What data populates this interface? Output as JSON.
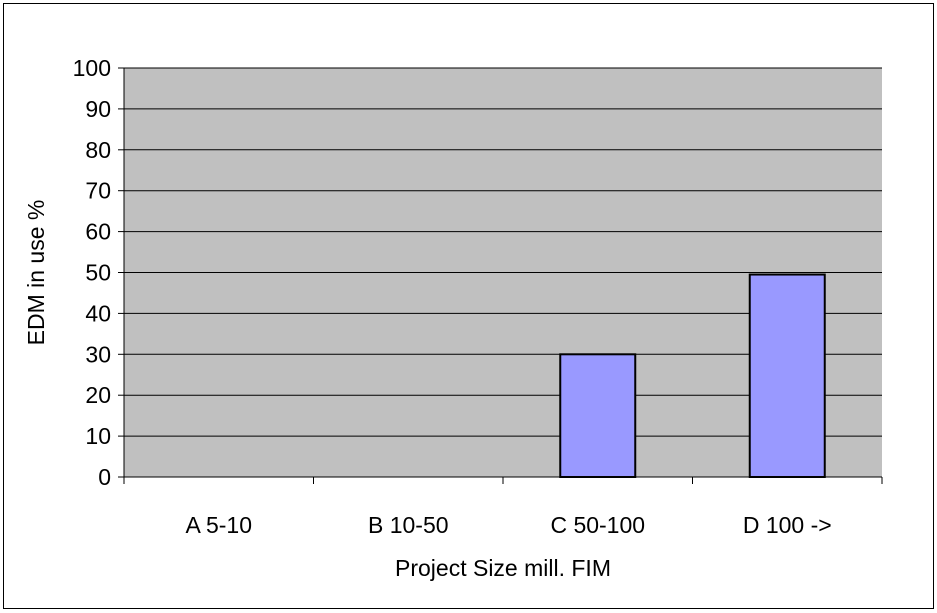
{
  "chart_data": {
    "type": "bar",
    "categories": [
      "A 5-10",
      "B 10-50",
      "C 50-100",
      "D 100 ->"
    ],
    "values": [
      0,
      0,
      30,
      49.5
    ],
    "xlabel": "Project Size mill. FIM",
    "ylabel": "EDM in use %",
    "ylim": [
      0,
      100
    ],
    "yticks": [
      0,
      10,
      20,
      30,
      40,
      50,
      60,
      70,
      80,
      90,
      100
    ],
    "grid": true,
    "legend": "none",
    "colors": {
      "plot_background": "#c0c0c0",
      "bar_fill": "#9999ff",
      "bar_stroke": "#000000",
      "gridline": "#000000"
    }
  }
}
